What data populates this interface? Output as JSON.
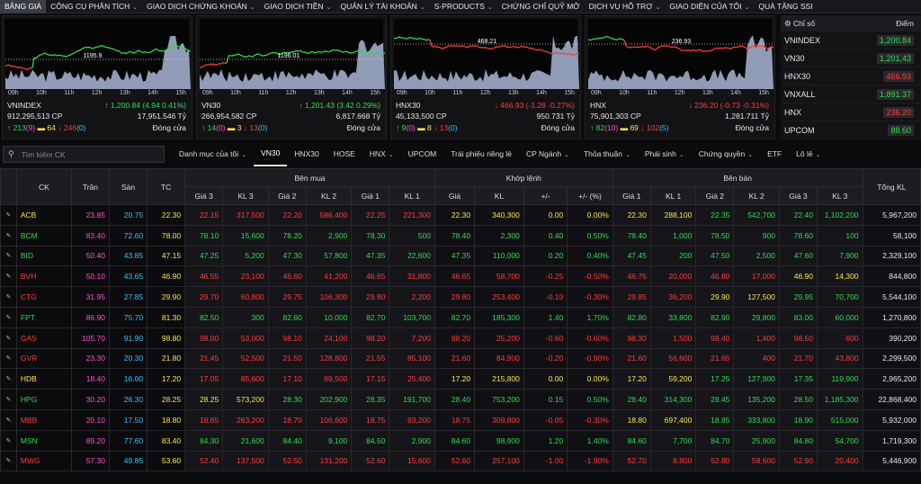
{
  "menu": [
    {
      "label": "BẢNG GIÁ",
      "caret": false,
      "active": true
    },
    {
      "label": "CÔNG CỤ PHÂN TÍCH",
      "caret": true
    },
    {
      "label": "GIAO DỊCH CHỨNG KHOÁN",
      "caret": true
    },
    {
      "label": "GIAO DỊCH TIỀN",
      "caret": true
    },
    {
      "label": "QUẢN LÝ TÀI KHOẢN",
      "caret": true
    },
    {
      "label": "S-PRODUCTS",
      "caret": true
    },
    {
      "label": "CHỨNG CHỈ QUỸ MỞ",
      "caret": false
    },
    {
      "label": "DỊCH VỤ HỖ TRỢ",
      "caret": true
    },
    {
      "label": "GIAO DIỆN CỦA TÔI",
      "caret": true
    },
    {
      "label": "QUÀ TẶNG SSI",
      "caret": false
    }
  ],
  "cards": [
    {
      "name": "VNINDEX",
      "peak": "1195.9",
      "change": "↑ 1,200.84 (4.94 0.41%)",
      "change_color": "#2fdc4a",
      "volume": "912,295,513 CP",
      "value": "17,951.546 Tỷ",
      "up": "↑ 213",
      "up_ceil": "(9)",
      "ref": "64",
      "down": "↓ 246",
      "down_floor": "(0)",
      "status": "Đóng cửa",
      "times": [
        "09h",
        "10h",
        "11h",
        "12h",
        "13h",
        "14h",
        "15h"
      ]
    },
    {
      "name": "VN30",
      "peak": "1196.01",
      "change": "↑ 1,201.43 (3.42 0.29%)",
      "change_color": "#2fdc4a",
      "volume": "266,954,582 CP",
      "value": "6,817.668 Tỷ",
      "up": "↑ 14",
      "up_ceil": "(0)",
      "ref": "3",
      "down": "↓ 13",
      "down_floor": "(0)",
      "status": "Đóng cửa",
      "times": [
        "09h",
        "10h",
        "11h",
        "12h",
        "13h",
        "14h",
        "15h"
      ]
    },
    {
      "name": "HNX30",
      "peak": "468.21",
      "change": "↓ 466.93 (-1.28 -0.27%)",
      "change_color": "#ff3b3b",
      "volume": "45,133,500 CP",
      "value": "950.731 Tỷ",
      "up": "↑ 9",
      "up_ceil": "(0)",
      "ref": "8",
      "down": "↓ 13",
      "down_floor": "(0)",
      "status": "Đóng cửa",
      "times": [
        "09h",
        "10h",
        "11h",
        "12h",
        "13h",
        "14h",
        "15h"
      ]
    },
    {
      "name": "HNX",
      "peak": "236.93",
      "change": "↓ 236.20 (-0.73 -0.31%)",
      "change_color": "#ff3b3b",
      "volume": "75,901,303 CP",
      "value": "1,281.711 Tỷ",
      "up": "↑ 82",
      "up_ceil": "(10)",
      "ref": "69",
      "down": "↓ 102",
      "down_floor": "(5)",
      "status": "Đóng cửa",
      "times": [
        "09h",
        "10h",
        "11h",
        "12h",
        "13h",
        "14h",
        "15h"
      ]
    }
  ],
  "index_panel": {
    "h_name": "Chỉ số",
    "h_point": "Điểm",
    "rows": [
      {
        "name": "VNINDEX",
        "point": "1,200.84",
        "color": "#2fdc4a"
      },
      {
        "name": "VN30",
        "point": "1,201.43",
        "color": "#2fdc4a"
      },
      {
        "name": "HNX30",
        "point": "466.93",
        "color": "#ff3b3b"
      },
      {
        "name": "VNXALL",
        "point": "1,891.37",
        "color": "#2fdc4a"
      },
      {
        "name": "HNX",
        "point": "236.20",
        "color": "#ff3b3b"
      },
      {
        "name": "UPCOM",
        "point": "88.60",
        "color": "#2fdc4a"
      }
    ]
  },
  "filter": {
    "search_placeholder": "Tìm kiếm CK",
    "items": [
      {
        "label": "Danh mục của tôi",
        "caret": true
      },
      {
        "label": "VN30",
        "caret": false,
        "active": true
      },
      {
        "label": "HNX30",
        "caret": false
      },
      {
        "label": "HOSE",
        "caret": false
      },
      {
        "label": "HNX",
        "caret": true
      },
      {
        "label": "UPCOM",
        "caret": false
      },
      {
        "label": "Trái phiếu riêng lẻ",
        "caret": false
      },
      {
        "label": "CP Ngành",
        "caret": true
      },
      {
        "label": "Thỏa thuận",
        "caret": true
      },
      {
        "label": "Phái sinh",
        "caret": true
      },
      {
        "label": "Chứng quyền",
        "caret": true
      },
      {
        "label": "ETF",
        "caret": false
      },
      {
        "label": "Lô lẻ",
        "caret": true
      }
    ]
  },
  "table": {
    "group_headers": {
      "buy": "Bên mua",
      "match": "Khớp lệnh",
      "sell": "Bên bán"
    },
    "headers": {
      "ck": "CK",
      "ceil": "Trần",
      "floor": "Sàn",
      "ref": "TC",
      "total": "Tổng KL",
      "buy": [
        "Giá 3",
        "KL 3",
        "Giá 2",
        "KL 2",
        "Giá 1",
        "KL 1"
      ],
      "match": [
        "Giá",
        "KL",
        "+/-",
        "+/- (%)"
      ],
      "sell": [
        "Giá 1",
        "KL 1",
        "Giá 2",
        "KL 2",
        "Giá 3",
        "KL 3"
      ]
    },
    "rows": [
      [
        "ACB",
        "23.85",
        "20.75",
        "22.30",
        "22.15",
        "317,500",
        "22.20",
        "586,400",
        "22.25",
        "221,300",
        "22.30",
        "340,300",
        "0.00",
        "0.00%",
        "22.30",
        "288,100",
        "22.35",
        "542,700",
        "22.40",
        "1,102,200",
        "5,967,200"
      ],
      [
        "BCM",
        "83.40",
        "72.60",
        "78.00",
        "78.10",
        "15,600",
        "78.20",
        "2,900",
        "78.30",
        "500",
        "78.40",
        "2,300",
        "0.40",
        "0.50%",
        "78.40",
        "1,000",
        "78.50",
        "900",
        "78.60",
        "100",
        "58,100"
      ],
      [
        "BID",
        "50.40",
        "43.85",
        "47.15",
        "47.25",
        "5,200",
        "47.30",
        "57,800",
        "47.35",
        "22,600",
        "47.35",
        "110,000",
        "0.20",
        "0.40%",
        "47.45",
        "200",
        "47.50",
        "2,500",
        "47.60",
        "7,900",
        "2,329,100"
      ],
      [
        "BVH",
        "50.10",
        "43.65",
        "46.90",
        "46.55",
        "23,100",
        "46.60",
        "41,200",
        "46.65",
        "31,800",
        "46.65",
        "58,700",
        "-0.25",
        "-0.50%",
        "46.75",
        "20,000",
        "46.80",
        "17,000",
        "46.90",
        "14,300",
        "844,800"
      ],
      [
        "CTG",
        "31.95",
        "27.85",
        "29.90",
        "29.70",
        "60,800",
        "29.75",
        "106,300",
        "29.80",
        "2,200",
        "29.80",
        "253,400",
        "-0.10",
        "-0.30%",
        "29.85",
        "36,200",
        "29.90",
        "127,500",
        "29.95",
        "70,700",
        "5,544,100"
      ],
      [
        "FPT",
        "86.90",
        "75.70",
        "81.30",
        "82.50",
        "300",
        "82.60",
        "10,000",
        "82.70",
        "103,700",
        "82.70",
        "185,300",
        "1.40",
        "1.70%",
        "82.80",
        "33,800",
        "82.90",
        "29,800",
        "83.00",
        "60,000",
        "1,270,800"
      ],
      [
        "GAS",
        "105.70",
        "91.90",
        "98.80",
        "98.00",
        "53,000",
        "98.10",
        "24,100",
        "98.20",
        "7,200",
        "98.20",
        "25,200",
        "-0.60",
        "-0.60%",
        "98.30",
        "1,500",
        "98.40",
        "1,400",
        "98.50",
        "600",
        "390,200"
      ],
      [
        "GVR",
        "23.30",
        "20.30",
        "21.80",
        "21.45",
        "52,500",
        "21.50",
        "128,800",
        "21.55",
        "85,100",
        "21.60",
        "84,900",
        "-0.20",
        "-0.90%",
        "21.60",
        "56,600",
        "21.65",
        "400",
        "21.70",
        "43,800",
        "2,299,500"
      ],
      [
        "HDB",
        "18.40",
        "16.00",
        "17.20",
        "17.05",
        "85,600",
        "17.10",
        "69,500",
        "17.15",
        "25,400",
        "17.20",
        "215,800",
        "0.00",
        "0.00%",
        "17.20",
        "59,200",
        "17.25",
        "127,900",
        "17.35",
        "119,900",
        "2,965,200"
      ],
      [
        "HPG",
        "30.20",
        "26.30",
        "28.25",
        "28.25",
        "573,200",
        "28.30",
        "202,900",
        "28.35",
        "191,700",
        "28.40",
        "753,200",
        "0.15",
        "0.50%",
        "28.40",
        "314,300",
        "28.45",
        "135,200",
        "28.50",
        "1,185,300",
        "22,868,400"
      ],
      [
        "MBB",
        "20.10",
        "17.50",
        "18.80",
        "18.65",
        "263,200",
        "18.70",
        "106,600",
        "18.75",
        "93,200",
        "18.75",
        "309,800",
        "-0.05",
        "-0.30%",
        "18.80",
        "697,400",
        "18.85",
        "333,800",
        "18.90",
        "515,000",
        "5,932,000"
      ],
      [
        "MSN",
        "89.20",
        "77.60",
        "83.40",
        "84.30",
        "21,600",
        "84.40",
        "9,100",
        "84.50",
        "2,900",
        "84.60",
        "98,900",
        "1.20",
        "1.40%",
        "84.60",
        "7,700",
        "84.70",
        "25,900",
        "84.80",
        "54,700",
        "1,719,300"
      ],
      [
        "MWG",
        "57.30",
        "49.85",
        "53.60",
        "52.40",
        "137,500",
        "52.50",
        "131,200",
        "52.60",
        "15,600",
        "52.60",
        "257,100",
        "-1.00",
        "-1.90%",
        "52.70",
        "8,800",
        "52.80",
        "58,600",
        "52.90",
        "20,400",
        "5,446,900"
      ]
    ]
  },
  "colors": {
    "up": "#2fdc4a",
    "down": "#ff3b3b",
    "ref": "#ffe34a",
    "ceil": "#ff4fd8",
    "floor": "#36c3ff"
  }
}
